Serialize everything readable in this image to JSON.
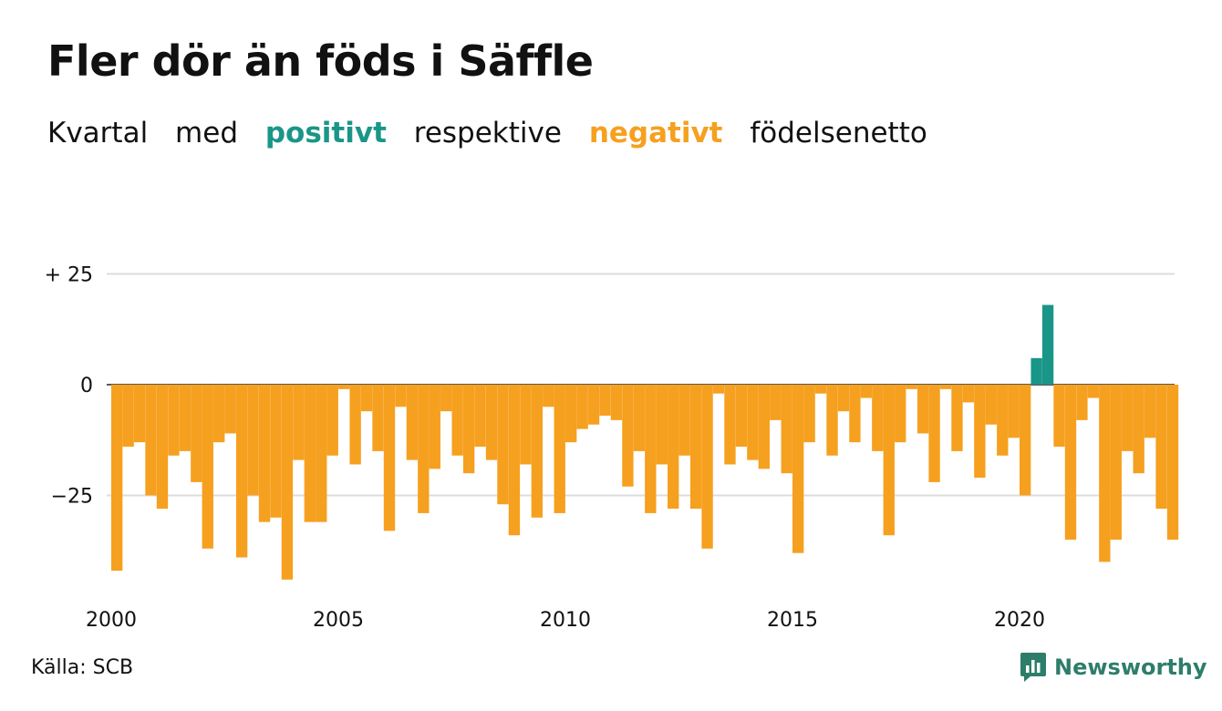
{
  "title": "Fler dör än föds i Säffle",
  "subtitle": {
    "part1": "Kvartal",
    "part2": "med",
    "positive_word": "positivt",
    "part3": "respektive",
    "negative_word": "negativt",
    "part4": "födelsenetto"
  },
  "colors": {
    "positive": "#1a9688",
    "negative": "#f6a01f",
    "grid": "#dddddd",
    "zero_line": "#222222",
    "brand": "#2e7d6b"
  },
  "source": "Källa: SCB",
  "brand": {
    "name": "Newsworthy",
    "icon": "newsworthy-logo-icon"
  },
  "chart_data": {
    "type": "bar",
    "x_start": {
      "year": 2000,
      "quarter": 1
    },
    "xticks": [
      "2000",
      "2005",
      "2010",
      "2015",
      "2020"
    ],
    "yticks": [
      {
        "value": 25,
        "label": "+ 25"
      },
      {
        "value": 0,
        "label": "0"
      },
      {
        "value": -25,
        "label": "−25"
      }
    ],
    "ylim": [
      -45,
      25
    ],
    "grid": true,
    "legend": "none",
    "values": [
      -42,
      -14,
      -13,
      -25,
      -28,
      -16,
      -15,
      -22,
      -37,
      -13,
      -11,
      -39,
      -25,
      -31,
      -30,
      -44,
      -17,
      -31,
      -31,
      -16,
      -1,
      -18,
      -6,
      -15,
      -33,
      -5,
      -17,
      -29,
      -19,
      -6,
      -16,
      -20,
      -14,
      -17,
      -27,
      -34,
      -18,
      -30,
      -5,
      -29,
      -13,
      -10,
      -9,
      -7,
      -8,
      -23,
      -15,
      -29,
      -18,
      -28,
      -16,
      -28,
      -37,
      -2,
      -18,
      -14,
      -17,
      -19,
      -8,
      -20,
      -38,
      -13,
      -2,
      -16,
      -6,
      -13,
      -3,
      -15,
      -34,
      -13,
      -1,
      -11,
      -22,
      -1,
      -15,
      -4,
      -21,
      -9,
      -16,
      -12,
      -25,
      6,
      18,
      -14,
      -35,
      -8,
      -3,
      -40,
      -35,
      -15,
      -20,
      -12,
      -28,
      -35
    ]
  }
}
